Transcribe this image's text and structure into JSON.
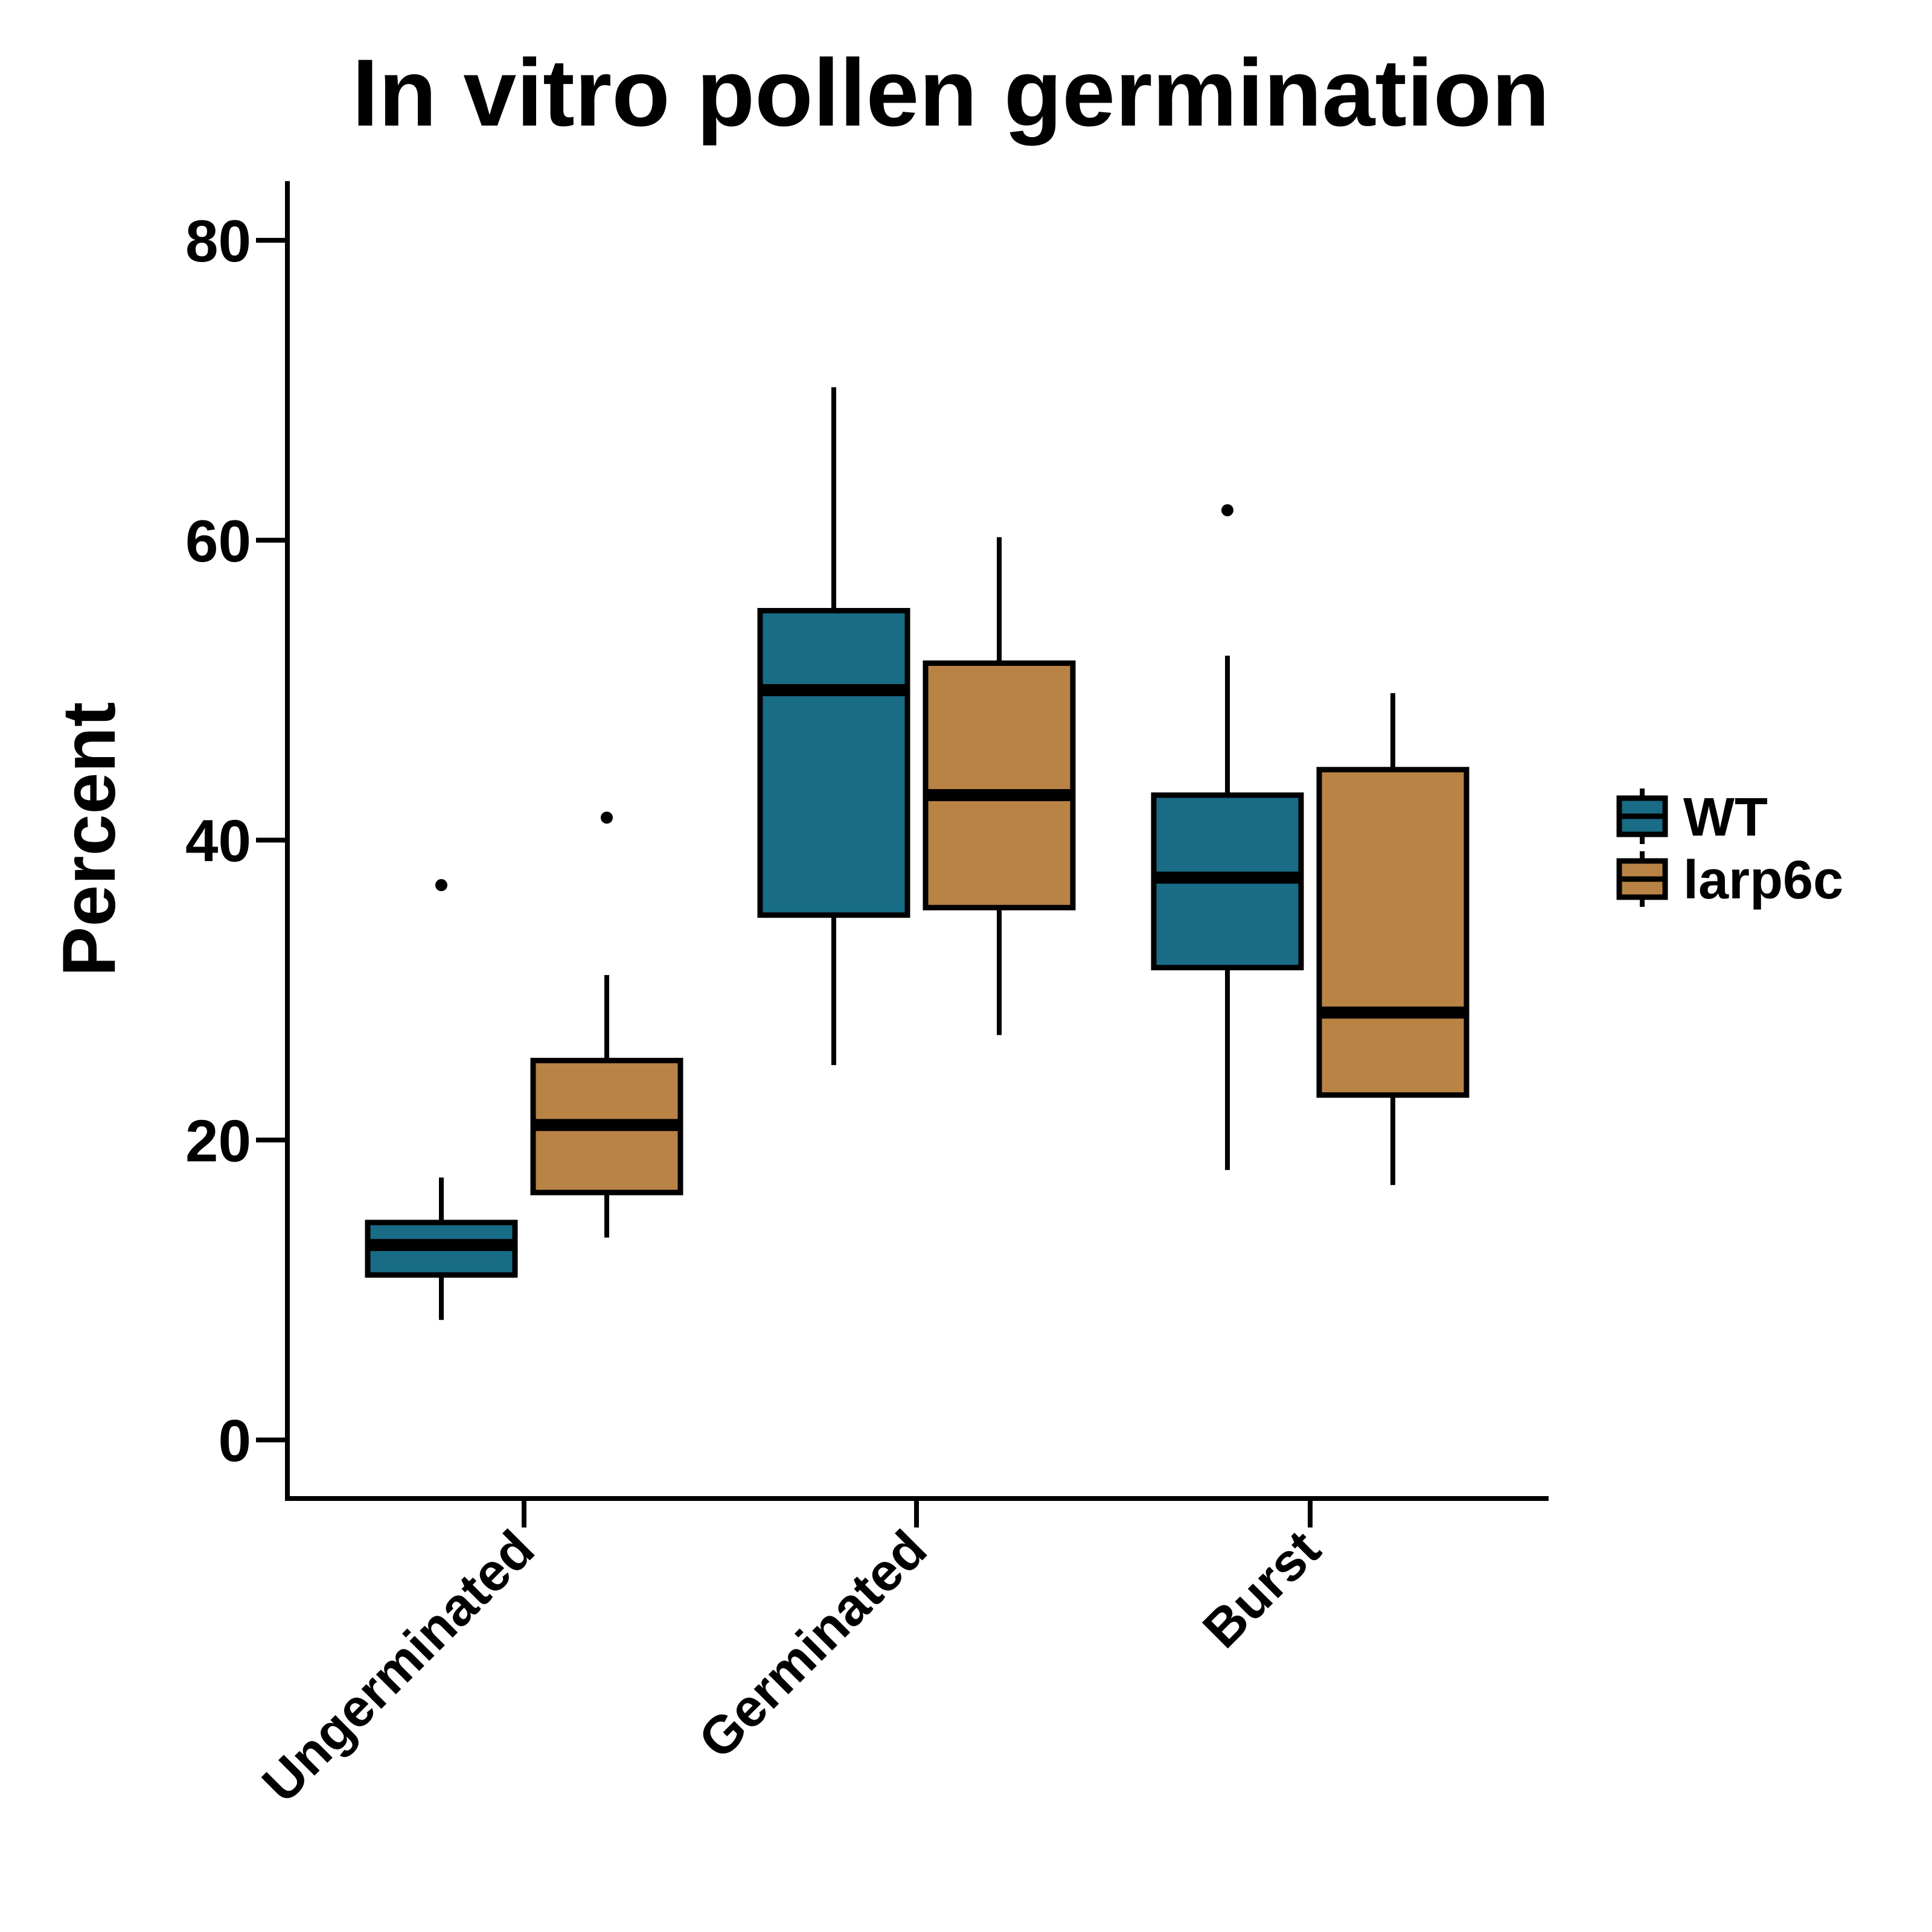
{
  "chart_data": {
    "type": "boxplot",
    "title": "In vitro pollen germination",
    "xlabel": "",
    "ylabel": "Percent",
    "ylim": [
      -4,
      84
    ],
    "yticks": [
      0,
      20,
      40,
      60,
      80
    ],
    "categories": [
      "Ungerminated",
      "Germinated",
      "Burst"
    ],
    "legend_position": "right",
    "grid": false,
    "series": [
      {
        "name": "WT",
        "color": "#186C86",
        "boxes": [
          {
            "category": "Ungerminated",
            "whisker_low": 8,
            "q1": 11,
            "median": 13,
            "q3": 14.5,
            "whisker_high": 17.5,
            "outliers": [
              37
            ]
          },
          {
            "category": "Germinated",
            "whisker_low": 25,
            "q1": 35,
            "median": 50,
            "q3": 55.3,
            "whisker_high": 70.2,
            "outliers": []
          },
          {
            "category": "Burst",
            "whisker_low": 18,
            "q1": 31.5,
            "median": 37.5,
            "q3": 43,
            "whisker_high": 52.3,
            "outliers": [
              62
            ]
          }
        ]
      },
      {
        "name": "larp6c",
        "color": "#B98345",
        "boxes": [
          {
            "category": "Ungerminated",
            "whisker_low": 13.5,
            "q1": 16.5,
            "median": 21,
            "q3": 25.3,
            "whisker_high": 31,
            "outliers": [
              41.5
            ]
          },
          {
            "category": "Germinated",
            "whisker_low": 27,
            "q1": 35.5,
            "median": 43,
            "q3": 51.8,
            "whisker_high": 60.2,
            "outliers": []
          },
          {
            "category": "Burst",
            "whisker_low": 17,
            "q1": 23,
            "median": 28.5,
            "q3": 44.7,
            "whisker_high": 49.8,
            "outliers": []
          }
        ]
      }
    ]
  }
}
